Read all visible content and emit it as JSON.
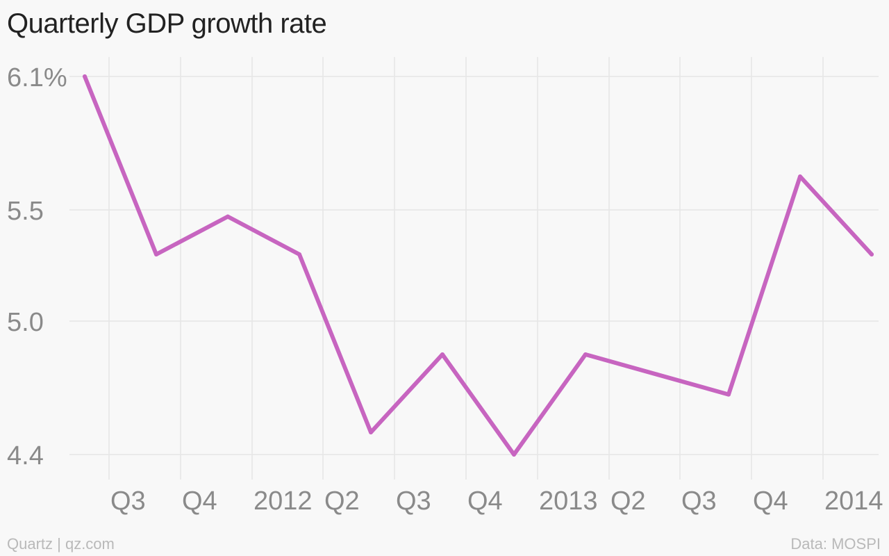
{
  "chart_data": {
    "type": "line",
    "title": "Quarterly GDP growth rate",
    "xlabel": "",
    "ylabel": "",
    "x_ticks": [
      "Q3",
      "Q4",
      "2012",
      "Q2",
      "Q3",
      "Q4",
      "2013",
      "Q2",
      "Q3",
      "Q4",
      "2014"
    ],
    "y_ticks": [
      "6.1%",
      "5.5",
      "5.0",
      "4.4"
    ],
    "y_tick_values": [
      6.1,
      5.5,
      5.0,
      4.4
    ],
    "ylim": [
      4.4,
      6.1
    ],
    "grid": true,
    "series": [
      {
        "color": "#c765c0",
        "x": [
          "Q2 2011",
          "Q3 2011",
          "Q4 2011",
          "Q1 2012",
          "Q2 2012",
          "Q3 2012",
          "Q4 2012",
          "Q1 2013",
          "Q2 2013",
          "Q3 2013",
          "Q4 2013",
          "Q1 2014"
        ],
        "values": [
          6.1,
          5.3,
          5.47,
          5.3,
          4.5,
          4.85,
          4.4,
          4.85,
          4.76,
          4.67,
          5.65,
          5.3
        ]
      }
    ]
  },
  "footer": {
    "source_left": "Quartz | qz.com",
    "source_right": "Data: MOSPI"
  }
}
